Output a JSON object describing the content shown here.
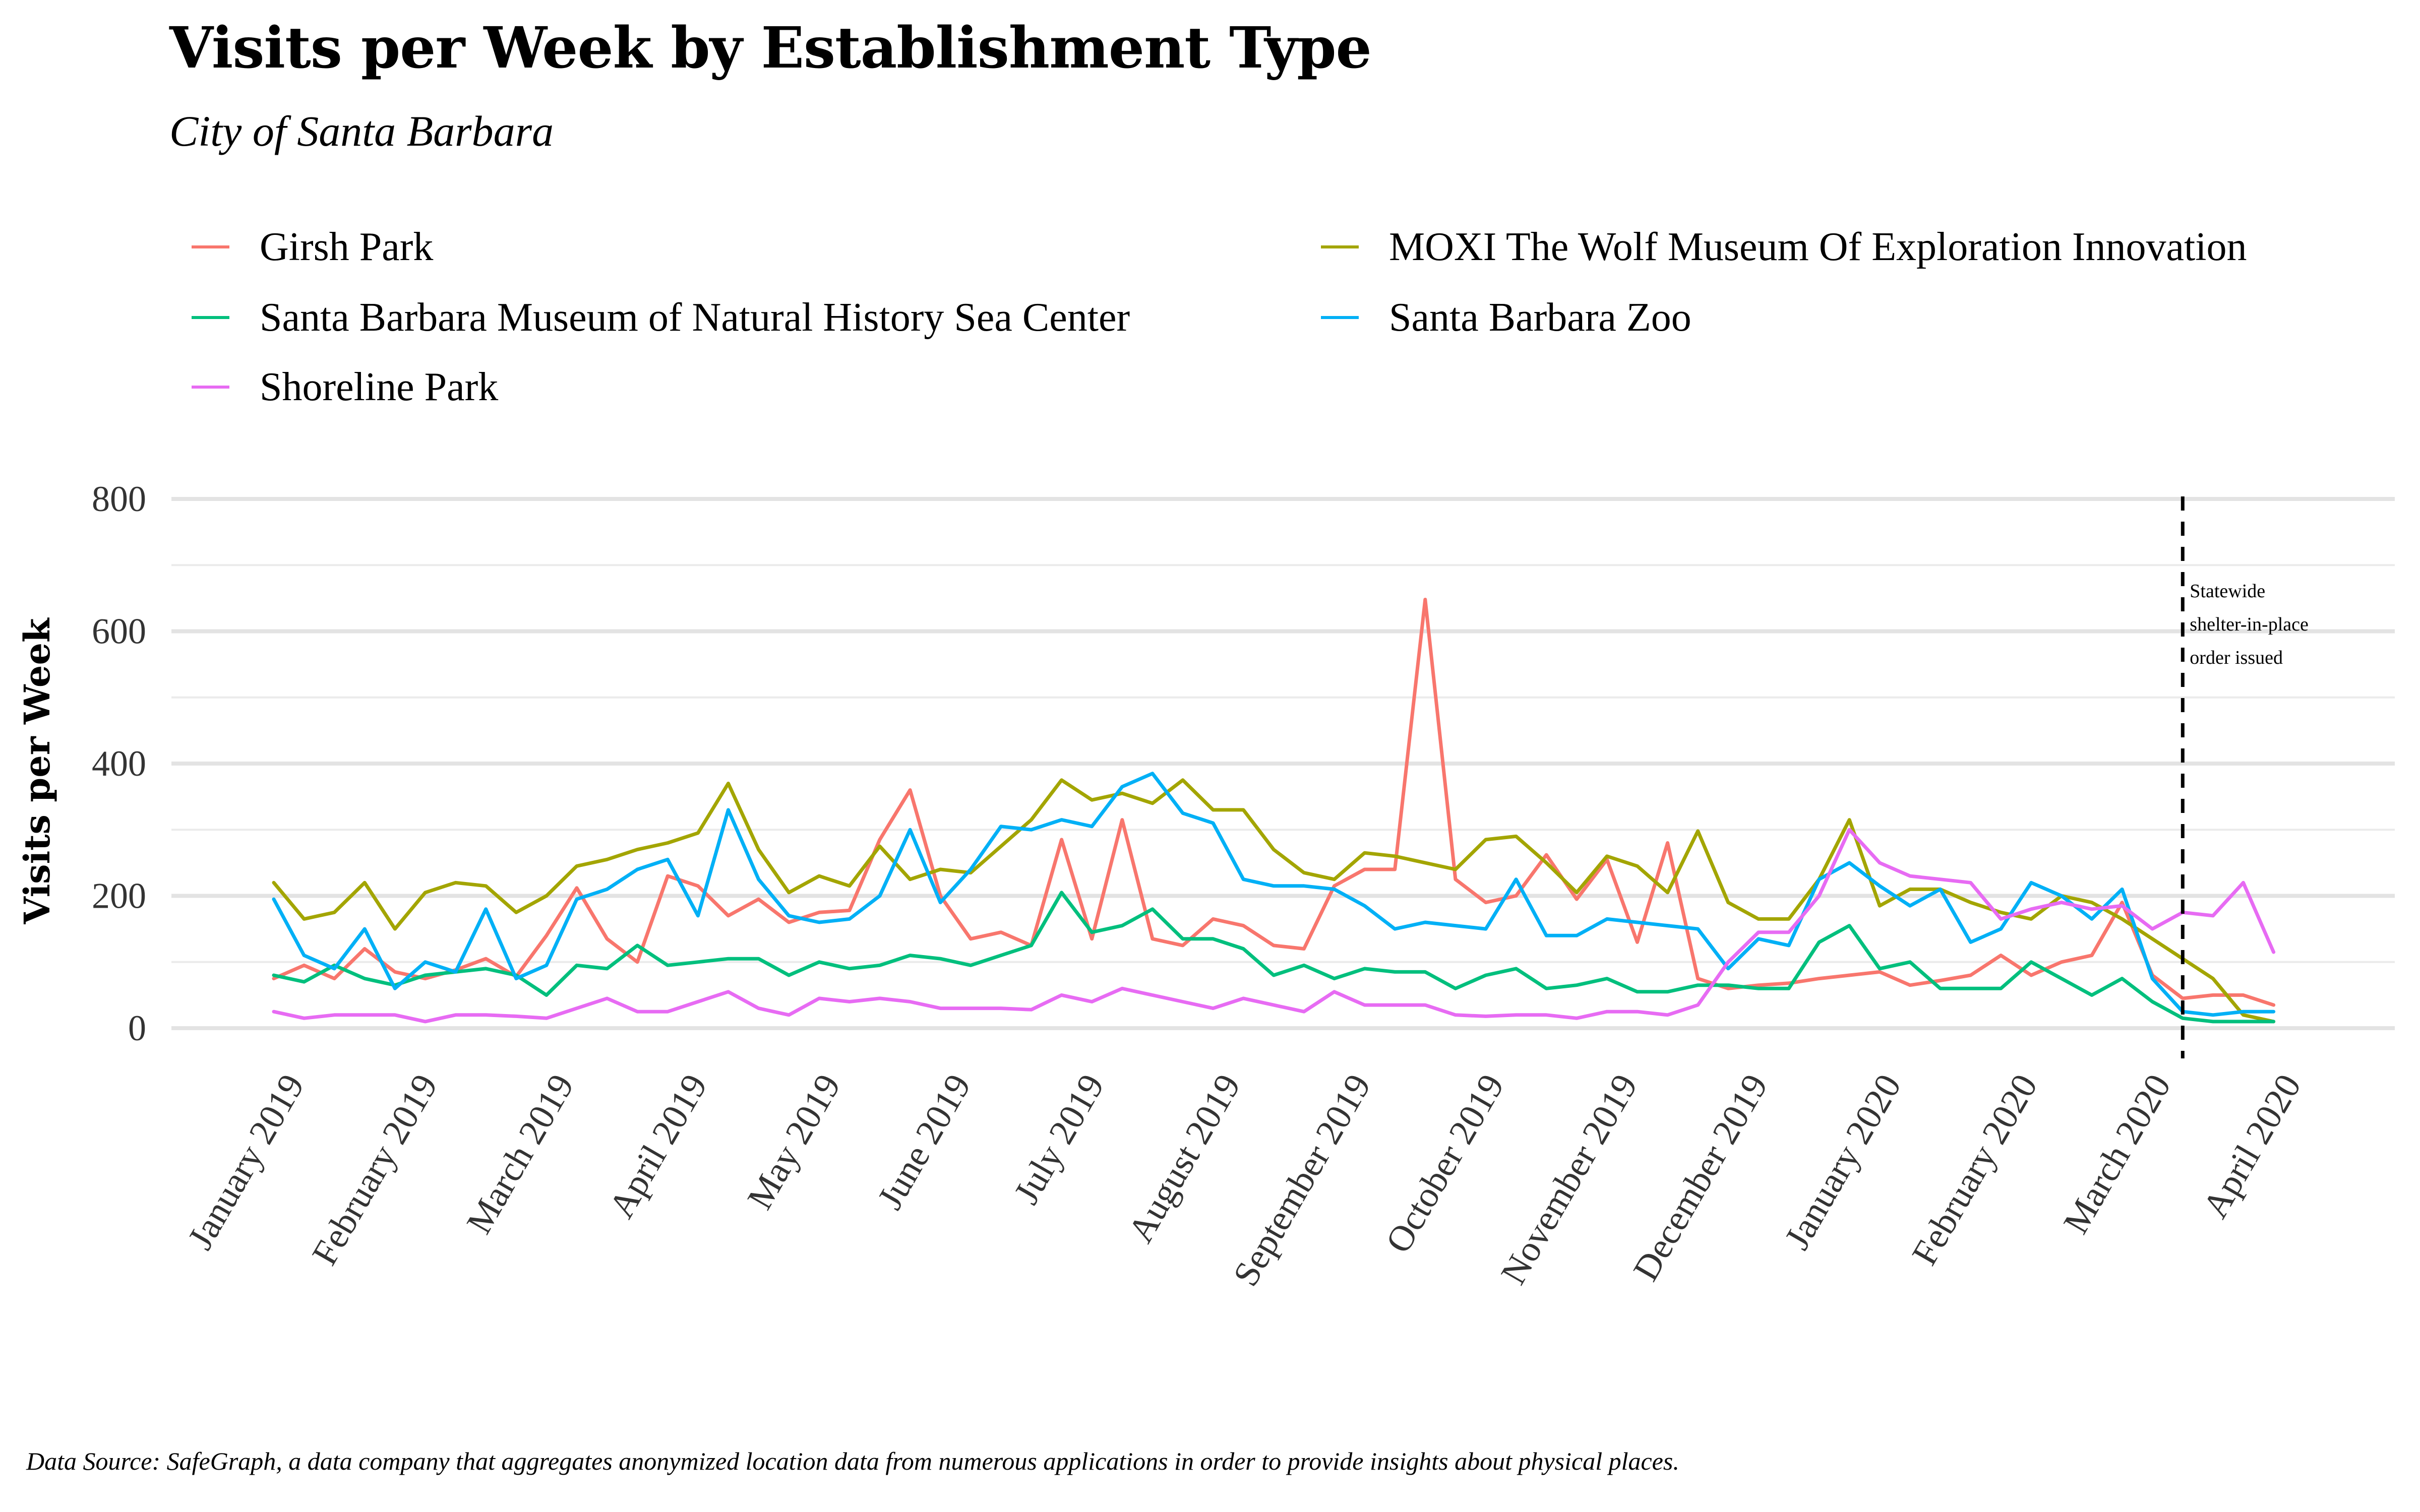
{
  "chart_data": {
    "type": "line",
    "title": "Visits per Week by Establishment Type",
    "subtitle": "City of Santa Barbara",
    "ylabel": "Visits per Week",
    "xlabel": "",
    "caption": "Data Source: SafeGraph, a data company that aggregates anonymized location data from numerous applications in order to provide insights about physical places.",
    "ylim": [
      -40,
      800
    ],
    "yticks": [
      0,
      200,
      400,
      600,
      800
    ],
    "grid": true,
    "legend_position": "top",
    "x_tick_labels": [
      "January 2019",
      "February 2019",
      "March 2019",
      "April 2019",
      "May 2019",
      "June 2019",
      "July 2019",
      "August 2019",
      "September 2019",
      "October 2019",
      "November 2019",
      "December 2019",
      "January 2020",
      "February 2020",
      "March 2020",
      "April 2020"
    ],
    "x_tick_weeks": [
      1.7,
      6.1,
      10.6,
      15.0,
      19.4,
      23.7,
      28.1,
      32.6,
      36.9,
      41.3,
      45.7,
      50.0,
      54.4,
      58.9,
      63.3,
      67.6
    ],
    "week_start": 1,
    "annotation": {
      "week": 64.0,
      "lines": [
        "Statewide",
        " shelter-in-place",
        "order issued"
      ]
    },
    "series": [
      {
        "name": "Girsh Park",
        "color": "#F8766D",
        "values": [
          75,
          95,
          75,
          120,
          85,
          75,
          88,
          105,
          78,
          140,
          212,
          135,
          100,
          230,
          215,
          170,
          195,
          160,
          175,
          178,
          285,
          360,
          200,
          135,
          145,
          125,
          285,
          135,
          315,
          135,
          125,
          165,
          155,
          125,
          120,
          215,
          240,
          240,
          648,
          225,
          190,
          200,
          262,
          195,
          255,
          130,
          280,
          75,
          60,
          65,
          68,
          75,
          80,
          85,
          65,
          72,
          80,
          110,
          80,
          100,
          110,
          190,
          80,
          45,
          50,
          50,
          35
        ]
      },
      {
        "name": "MOXI The Wolf Museum Of Exploration Innovation",
        "color": "#A3A500",
        "values": [
          220,
          165,
          175,
          220,
          150,
          205,
          220,
          215,
          175,
          200,
          245,
          255,
          270,
          280,
          295,
          370,
          270,
          205,
          230,
          215,
          275,
          225,
          240,
          235,
          275,
          315,
          375,
          345,
          355,
          340,
          375,
          330,
          330,
          270,
          235,
          225,
          265,
          260,
          250,
          240,
          285,
          290,
          250,
          205,
          260,
          245,
          205,
          298,
          190,
          165,
          165,
          225,
          315,
          185,
          210,
          210,
          190,
          175,
          165,
          200,
          190,
          165,
          135,
          105,
          75,
          20,
          10
        ]
      },
      {
        "name": "Santa Barbara Museum of Natural History Sea Center",
        "color": "#00BF7D",
        "values": [
          80,
          70,
          95,
          75,
          65,
          80,
          85,
          90,
          80,
          50,
          95,
          90,
          125,
          95,
          100,
          105,
          105,
          80,
          100,
          90,
          95,
          110,
          105,
          95,
          110,
          125,
          205,
          145,
          155,
          180,
          135,
          135,
          120,
          80,
          95,
          75,
          90,
          85,
          85,
          60,
          80,
          90,
          60,
          65,
          75,
          55,
          55,
          65,
          65,
          60,
          60,
          130,
          155,
          90,
          100,
          60,
          60,
          60,
          100,
          75,
          50,
          75,
          40,
          15,
          10,
          10,
          10
        ]
      },
      {
        "name": "Santa Barbara Zoo",
        "color": "#00B0F6",
        "values": [
          195,
          110,
          90,
          150,
          60,
          100,
          85,
          180,
          75,
          95,
          195,
          210,
          240,
          255,
          170,
          330,
          225,
          170,
          160,
          165,
          200,
          300,
          190,
          240,
          305,
          300,
          315,
          305,
          365,
          385,
          325,
          310,
          225,
          215,
          215,
          210,
          185,
          150,
          160,
          155,
          150,
          225,
          140,
          140,
          165,
          160,
          155,
          150,
          90,
          135,
          125,
          225,
          250,
          215,
          185,
          210,
          130,
          150,
          220,
          200,
          165,
          210,
          75,
          25,
          20,
          25,
          25
        ]
      },
      {
        "name": "Shoreline Park",
        "color": "#E76BF3",
        "values": [
          25,
          15,
          20,
          20,
          20,
          10,
          20,
          20,
          18,
          15,
          30,
          45,
          25,
          25,
          40,
          55,
          30,
          20,
          45,
          40,
          45,
          40,
          30,
          30,
          30,
          28,
          50,
          40,
          60,
          50,
          40,
          30,
          45,
          35,
          25,
          55,
          35,
          35,
          35,
          20,
          18,
          20,
          20,
          15,
          25,
          25,
          20,
          35,
          100,
          145,
          145,
          200,
          300,
          250,
          230,
          225,
          220,
          165,
          180,
          190,
          180,
          185,
          150,
          175,
          170,
          220,
          115
        ]
      }
    ]
  }
}
